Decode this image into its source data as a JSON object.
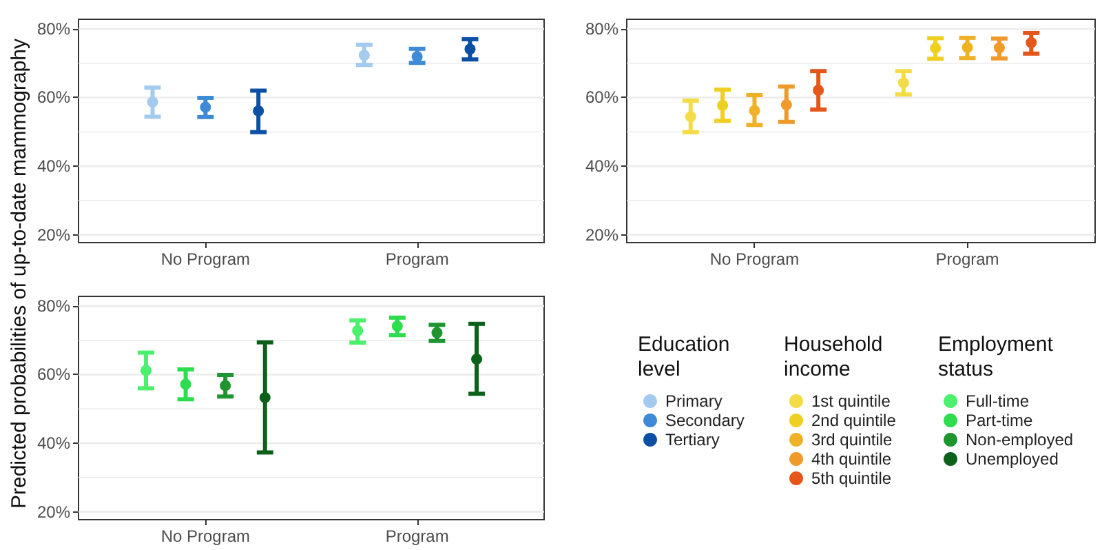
{
  "chart_data": [
    {
      "type": "scatter",
      "ylabel": "Predicted probabilities of up-to-date mammography",
      "legend_title": "Education level",
      "categories": [
        "No Program",
        "Program"
      ],
      "ylim": [
        17.7,
        82.8
      ],
      "yticks": [
        {
          "value": 20,
          "label": "20%"
        },
        {
          "value": 30,
          "label": null
        },
        {
          "value": 40,
          "label": "40%"
        },
        {
          "value": 50,
          "label": null
        },
        {
          "value": 60,
          "label": "60%"
        },
        {
          "value": 70,
          "label": null
        },
        {
          "value": 80,
          "label": "80%"
        }
      ],
      "grid": true,
      "legend": "bottom right",
      "marker": "circle",
      "series": [
        {
          "name": "Primary",
          "color": "#a3cbef",
          "values": [
            58.7,
            72.3
          ],
          "errors": [
            [
              54.4,
              62.9
            ],
            [
              69.5,
              75.4
            ]
          ]
        },
        {
          "name": "Secondary",
          "color": "#3f8ad6",
          "values": [
            57.2,
            71.9
          ],
          "errors": [
            [
              54.3,
              59.9
            ],
            [
              70.1,
              74.2
            ]
          ]
        },
        {
          "name": "Tertiary",
          "color": "#0c50a6",
          "values": [
            56.1,
            74.1
          ],
          "errors": [
            [
              49.9,
              62.0
            ],
            [
              71.1,
              77.0
            ]
          ]
        }
      ]
    },
    {
      "type": "scatter",
      "legend_title": "Household income",
      "categories": [
        "No Program",
        "Program"
      ],
      "ylim": [
        17.7,
        82.8
      ],
      "yticks": [
        {
          "value": 20,
          "label": "20%"
        },
        {
          "value": 30,
          "label": null
        },
        {
          "value": 40,
          "label": "40%"
        },
        {
          "value": 50,
          "label": null
        },
        {
          "value": 60,
          "label": "60%"
        },
        {
          "value": 70,
          "label": null
        },
        {
          "value": 80,
          "label": "80%"
        }
      ],
      "grid": true,
      "legend": "bottom right",
      "marker": "circle",
      "series": [
        {
          "name": "1st quintile",
          "color": "#f3dc46",
          "values": [
            54.4,
            64.3
          ],
          "errors": [
            [
              49.9,
              59.1
            ],
            [
              60.9,
              67.7
            ]
          ]
        },
        {
          "name": "2nd quintile",
          "color": "#efd021",
          "values": [
            57.7,
            74.4
          ],
          "errors": [
            [
              53.2,
              62.3
            ],
            [
              71.3,
              77.3
            ]
          ]
        },
        {
          "name": "3rd quintile",
          "color": "#efb125",
          "values": [
            56.2,
            74.6
          ],
          "errors": [
            [
              52.0,
              60.7
            ],
            [
              71.5,
              77.4
            ]
          ]
        },
        {
          "name": "4th quintile",
          "color": "#ef9a2a",
          "values": [
            57.9,
            74.5
          ],
          "errors": [
            [
              52.9,
              63.2
            ],
            [
              71.4,
              77.2
            ]
          ]
        },
        {
          "name": "5th quintile",
          "color": "#e6561a",
          "values": [
            62.1,
            76.0
          ],
          "errors": [
            [
              56.5,
              67.7
            ],
            [
              72.8,
              78.8
            ]
          ]
        }
      ]
    },
    {
      "type": "scatter",
      "legend_title": "Employment status",
      "categories": [
        "No Program",
        "Program"
      ],
      "ylim": [
        17.7,
        82.8
      ],
      "yticks": [
        {
          "value": 20,
          "label": "20%"
        },
        {
          "value": 30,
          "label": null
        },
        {
          "value": 40,
          "label": "40%"
        },
        {
          "value": 50,
          "label": null
        },
        {
          "value": 60,
          "label": "60%"
        },
        {
          "value": 70,
          "label": null
        },
        {
          "value": 80,
          "label": "80%"
        }
      ],
      "grid": true,
      "legend": "bottom right",
      "marker": "circle",
      "series": [
        {
          "name": "Full-time",
          "color": "#4cf06c",
          "values": [
            61.2,
            72.8
          ],
          "errors": [
            [
              56.0,
              66.4
            ],
            [
              69.3,
              75.8
            ]
          ]
        },
        {
          "name": "Part-time",
          "color": "#2ddd4f",
          "values": [
            57.2,
            74.1
          ],
          "errors": [
            [
              52.8,
              61.5
            ],
            [
              71.5,
              76.6
            ]
          ]
        },
        {
          "name": "Non-employed",
          "color": "#1e9530",
          "values": [
            56.8,
            72.2
          ],
          "errors": [
            [
              53.6,
              59.9
            ],
            [
              69.8,
              74.5
            ]
          ]
        },
        {
          "name": "Unemployed",
          "color": "#0b6119",
          "values": [
            53.3,
            64.5
          ],
          "errors": [
            [
              37.3,
              69.4
            ],
            [
              54.4,
              74.8
            ]
          ]
        }
      ]
    }
  ]
}
